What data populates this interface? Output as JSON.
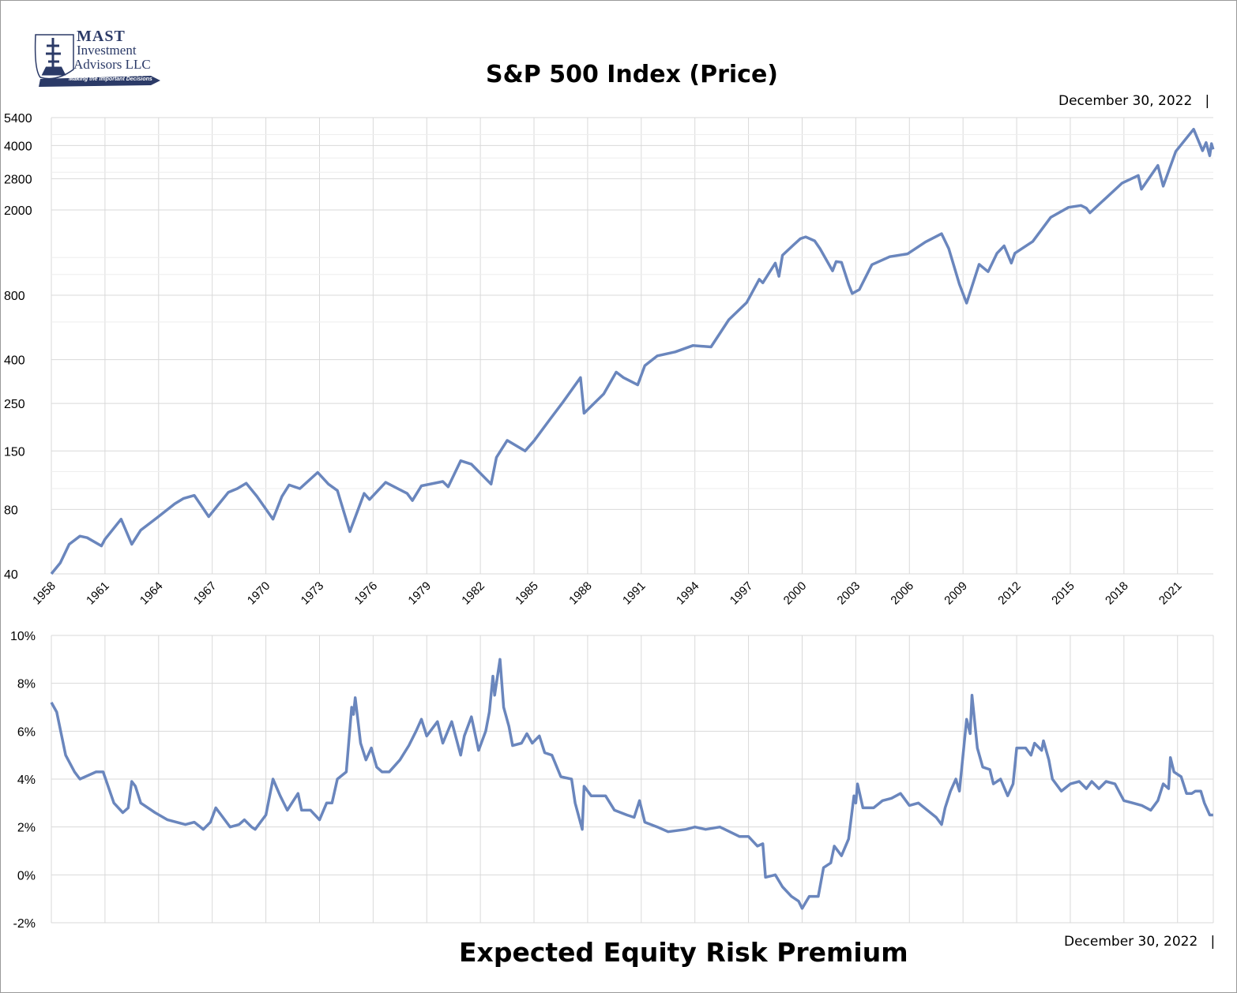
{
  "logo": {
    "line1": "MAST",
    "line2": "Investment",
    "line3": "Advisors LLC",
    "tagline": "Making the Important Decisions",
    "color": "#2b3a67"
  },
  "chart_data": [
    {
      "type": "line",
      "title": "S&P 500 Index (Price)",
      "date_label": "December 30, 2022",
      "date_separator": "|",
      "y_scale": "log",
      "ylim": [
        40,
        5400
      ],
      "y_ticks": [
        5400,
        4000,
        2800,
        2000,
        800,
        400,
        250,
        150,
        80,
        40
      ],
      "xlim": [
        1958,
        2023
      ],
      "x_ticks": [
        "1958",
        "1961",
        "1964",
        "1967",
        "1970",
        "1973",
        "1976",
        "1979",
        "1982",
        "1985",
        "1988",
        "1991",
        "1994",
        "1997",
        "2000",
        "2003",
        "2006",
        "2009",
        "2012",
        "2015",
        "2018",
        "2021"
      ],
      "grid": true,
      "line_color": "#6a86bd",
      "x": [
        1958.0,
        1958.5,
        1959.0,
        1959.6,
        1960.0,
        1960.8,
        1961.0,
        1961.9,
        1962.5,
        1963.0,
        1963.9,
        1964.9,
        1965.4,
        1966.0,
        1966.8,
        1967.9,
        1968.4,
        1968.9,
        1969.5,
        1970.4,
        1970.9,
        1971.3,
        1971.9,
        1972.9,
        1973.5,
        1974.0,
        1974.7,
        1975.5,
        1975.8,
        1976.7,
        1977.9,
        1978.2,
        1978.7,
        1979.9,
        1980.2,
        1980.9,
        1981.5,
        1982.6,
        1982.9,
        1983.5,
        1984.5,
        1985.0,
        1985.9,
        1986.6,
        1987.6,
        1987.8,
        1988.9,
        1989.6,
        1990.0,
        1990.8,
        1991.2,
        1991.9,
        1992.9,
        1993.9,
        1994.9,
        1995.9,
        1996.9,
        1997.6,
        1997.8,
        1998.5,
        1998.7,
        1998.9,
        1999.5,
        1999.9,
        2000.2,
        2000.7,
        2001.0,
        2001.7,
        2001.9,
        2002.2,
        2002.6,
        2002.8,
        2003.2,
        2003.9,
        2004.9,
        2005.9,
        2006.9,
        2007.8,
        2008.2,
        2008.8,
        2009.2,
        2009.9,
        2010.4,
        2010.9,
        2011.3,
        2011.7,
        2011.9,
        2012.9,
        2013.9,
        2014.9,
        2015.6,
        2015.9,
        2016.1,
        2016.9,
        2017.9,
        2018.8,
        2018.98,
        2019.9,
        2020.2,
        2020.9,
        2021.9,
        2022.4,
        2022.6,
        2022.8,
        2022.9,
        2022.99
      ],
      "values": [
        40,
        45,
        55,
        60,
        59,
        54,
        58,
        72,
        55,
        64,
        73,
        85,
        90,
        93,
        74,
        96,
        100,
        106,
        92,
        72,
        92,
        104,
        100,
        119,
        105,
        98,
        63,
        95,
        89,
        107,
        95,
        88,
        103,
        108,
        102,
        135,
        130,
        105,
        140,
        168,
        150,
        167,
        211,
        252,
        330,
        225,
        277,
        350,
        330,
        305,
        375,
        417,
        435,
        466,
        459,
        615,
        740,
        950,
        914,
        1130,
        980,
        1229,
        1370,
        1469,
        1498,
        1436,
        1320,
        1040,
        1148,
        1140,
        900,
        815,
        850,
        1111,
        1211,
        1248,
        1418,
        1550,
        1320,
        900,
        735,
        1115,
        1030,
        1257,
        1360,
        1130,
        1257,
        1426,
        1848,
        2058,
        2100,
        2040,
        1940,
        2238,
        2673,
        2900,
        2500,
        3230,
        2585,
        3756,
        4766,
        3785,
        4130,
        3585,
        4080,
        3839
      ]
    },
    {
      "type": "line",
      "title": "Expected Equity Risk Premium",
      "date_label": "December 30, 2022",
      "date_separator": "|",
      "ylim": [
        -2,
        10
      ],
      "y_ticks": [
        "10%",
        "8%",
        "6%",
        "4%",
        "2%",
        "0%",
        "-2%"
      ],
      "y_tick_values": [
        10,
        8,
        6,
        4,
        2,
        0,
        -2
      ],
      "xlim": [
        1958,
        2023
      ],
      "grid": true,
      "line_color": "#6a86bd",
      "x": [
        1958.0,
        1958.3,
        1958.8,
        1959.3,
        1959.6,
        1960.5,
        1960.9,
        1961.5,
        1962.0,
        1962.3,
        1962.5,
        1962.7,
        1963.0,
        1963.8,
        1964.5,
        1965.5,
        1966.0,
        1966.5,
        1966.9,
        1967.2,
        1967.5,
        1968.0,
        1968.5,
        1968.8,
        1969.2,
        1969.4,
        1969.7,
        1970.0,
        1970.4,
        1970.8,
        1971.2,
        1971.8,
        1972.0,
        1972.5,
        1973.0,
        1973.4,
        1973.7,
        1974.0,
        1974.5,
        1974.8,
        1974.9,
        1975.0,
        1975.3,
        1975.6,
        1975.9,
        1976.2,
        1976.5,
        1976.9,
        1977.5,
        1978.0,
        1978.4,
        1978.7,
        1979.0,
        1979.3,
        1979.6,
        1979.9,
        1980.4,
        1980.9,
        1981.1,
        1981.5,
        1981.9,
        1982.3,
        1982.5,
        1982.7,
        1982.8,
        1983.1,
        1983.3,
        1983.6,
        1983.8,
        1984.3,
        1984.6,
        1984.9,
        1985.3,
        1985.6,
        1986.0,
        1986.5,
        1987.1,
        1987.3,
        1987.7,
        1987.8,
        1988.2,
        1989.0,
        1989.5,
        1990.2,
        1990.6,
        1990.9,
        1991.2,
        1991.9,
        1992.5,
        1993.5,
        1994.0,
        1994.6,
        1995.4,
        1996.5,
        1997.0,
        1997.5,
        1997.8,
        1997.95,
        1998.5,
        1998.9,
        1999.4,
        1999.8,
        2000.0,
        2000.4,
        2000.9,
        2001.2,
        2001.6,
        2001.8,
        2002.2,
        2002.6,
        2002.9,
        2003.0,
        2003.1,
        2003.4,
        2004.0,
        2004.5,
        2005.0,
        2005.5,
        2006.0,
        2006.5,
        2007.0,
        2007.5,
        2007.8,
        2008.0,
        2008.3,
        2008.6,
        2008.8,
        2009.2,
        2009.4,
        2009.5,
        2009.8,
        2010.1,
        2010.5,
        2010.7,
        2011.1,
        2011.5,
        2011.8,
        2012.0,
        2012.5,
        2012.8,
        2013.0,
        2013.4,
        2013.5,
        2013.8,
        2014.0,
        2014.5,
        2015.0,
        2015.5,
        2015.9,
        2016.2,
        2016.6,
        2017.0,
        2017.5,
        2018.0,
        2018.5,
        2019.0,
        2019.5,
        2019.9,
        2020.2,
        2020.5,
        2020.6,
        2020.8,
        2021.2,
        2021.5,
        2021.8,
        2022.0,
        2022.3,
        2022.5,
        2022.8,
        2022.99
      ],
      "values": [
        7.2,
        6.8,
        5.0,
        4.3,
        4.0,
        4.3,
        4.3,
        3.0,
        2.6,
        2.8,
        3.9,
        3.7,
        3.0,
        2.6,
        2.3,
        2.1,
        2.2,
        1.9,
        2.2,
        2.8,
        2.5,
        2.0,
        2.1,
        2.3,
        2.0,
        1.9,
        2.2,
        2.5,
        4.0,
        3.3,
        2.7,
        3.4,
        2.7,
        2.7,
        2.3,
        3.0,
        3.0,
        4.0,
        4.3,
        7.0,
        6.7,
        7.4,
        5.5,
        4.8,
        5.3,
        4.5,
        4.3,
        4.3,
        4.8,
        5.4,
        6.0,
        6.5,
        5.8,
        6.1,
        6.4,
        5.5,
        6.4,
        5.0,
        5.8,
        6.6,
        5.2,
        6.0,
        6.8,
        8.3,
        7.5,
        9.0,
        7.0,
        6.2,
        5.4,
        5.5,
        5.9,
        5.5,
        5.8,
        5.1,
        5.0,
        4.1,
        4.0,
        3.0,
        1.9,
        3.7,
        3.3,
        3.3,
        2.7,
        2.5,
        2.4,
        3.1,
        2.2,
        2.0,
        1.8,
        1.9,
        2.0,
        1.9,
        2.0,
        1.6,
        1.6,
        1.2,
        1.3,
        -0.1,
        0.0,
        -0.5,
        -0.9,
        -1.1,
        -1.4,
        -0.9,
        -0.9,
        0.3,
        0.5,
        1.2,
        0.8,
        1.5,
        3.3,
        3.0,
        3.8,
        2.8,
        2.8,
        3.1,
        3.2,
        3.4,
        2.9,
        3.0,
        2.7,
        2.4,
        2.1,
        2.8,
        3.5,
        4.0,
        3.5,
        6.5,
        5.9,
        7.5,
        5.3,
        4.5,
        4.4,
        3.8,
        4.0,
        3.3,
        3.8,
        5.3,
        5.3,
        5.0,
        5.5,
        5.2,
        5.6,
        4.8,
        4.0,
        3.5,
        3.8,
        3.9,
        3.6,
        3.9,
        3.6,
        3.9,
        3.8,
        3.1,
        3.0,
        2.9,
        2.7,
        3.1,
        3.8,
        3.6,
        4.9,
        4.3,
        4.1,
        3.4,
        3.4,
        3.5,
        3.5,
        3.0,
        2.5,
        2.5
      ]
    }
  ]
}
